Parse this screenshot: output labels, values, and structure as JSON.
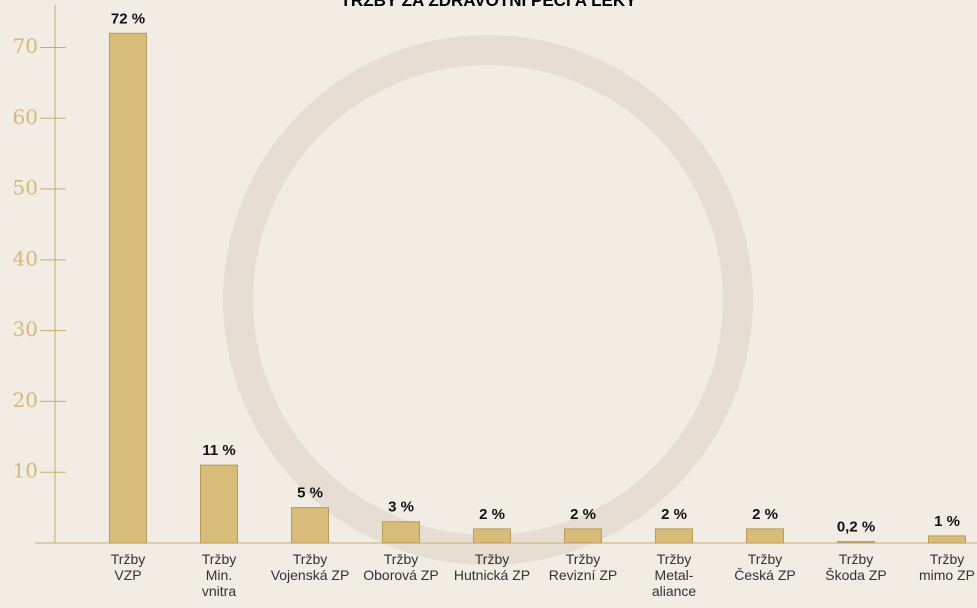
{
  "chart_data": {
    "type": "bar",
    "title": "TRŽBY ZA ZDRAVOTNÍ PÉČI A LÉKY",
    "categories": [
      "Tržby\nVZP",
      "Tržby\nMin.\nvnitra",
      "Tržby\nVojenská ZP",
      "Tržby\nOborová ZP",
      "Tržby\nHutnická ZP",
      "Tržby\nRevizní ZP",
      "Tržby\nMetal-\naliance",
      "Tržby\nČeská ZP",
      "Tržby\nŠkoda ZP",
      "Tržby\nmimo ZP"
    ],
    "values": [
      72,
      11,
      5,
      3,
      2,
      2,
      2,
      2,
      0.2,
      1
    ],
    "value_labels": [
      "72 %",
      "11 %",
      "5 %",
      "3 %",
      "2 %",
      "2 %",
      "2 %",
      "2 %",
      "0,2 %",
      "1 %"
    ],
    "color": "#d8bc7a",
    "ylim": [
      0,
      76
    ],
    "yticks": [
      10,
      20,
      30,
      40,
      50,
      60,
      70
    ]
  }
}
